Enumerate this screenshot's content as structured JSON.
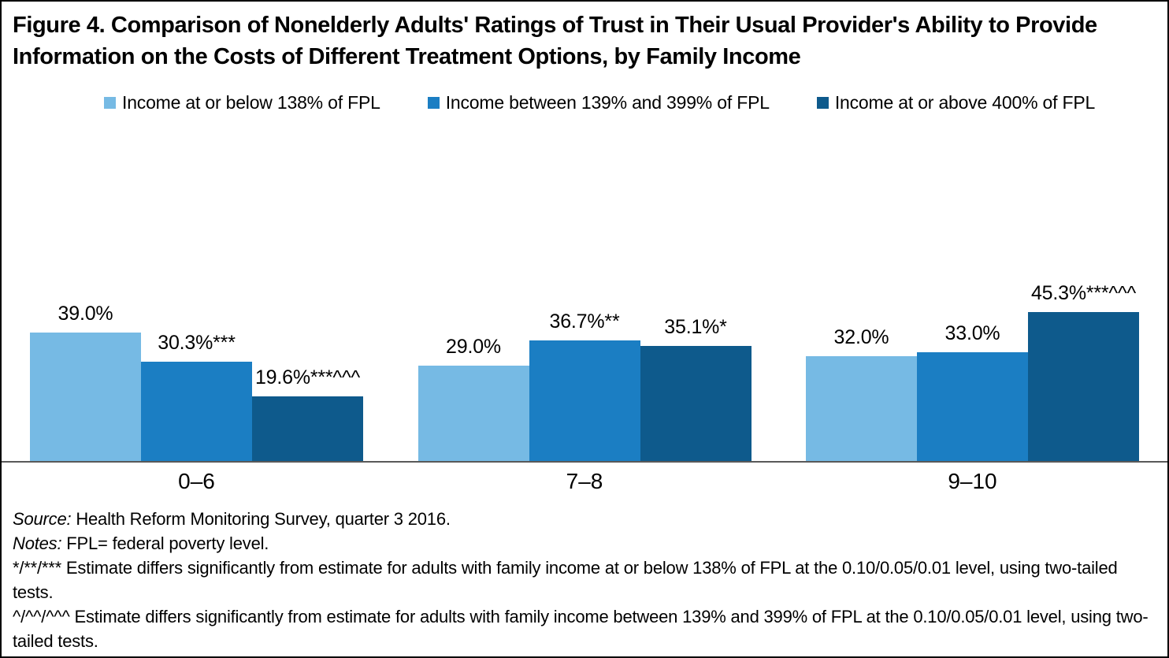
{
  "chart_data": {
    "type": "bar",
    "title": "Figure 4. Comparison of Nonelderly Adults' Ratings of Trust in Their Usual Provider's Ability to Provide Information on the Costs of Different Treatment Options, by Family Income",
    "categories": [
      "0–6",
      "7–8",
      "9–10"
    ],
    "series": [
      {
        "name": "Income at or below 138% of FPL",
        "color": "#76BAE4",
        "values": [
          39.0,
          29.0,
          32.0
        ],
        "labels": [
          "39.0%",
          "29.0%",
          "32.0%"
        ]
      },
      {
        "name": "Income between 139% and 399% of FPL",
        "color": "#1B7EC3",
        "values": [
          30.3,
          36.7,
          33.0
        ],
        "labels": [
          "30.3%***",
          "36.7%**",
          "33.0%"
        ]
      },
      {
        "name": "Income at or above 400% of FPL",
        "color": "#0E5A8C",
        "values": [
          19.6,
          35.1,
          45.3
        ],
        "labels": [
          "19.6%***^^^",
          "35.1%*",
          "45.3%***^^^"
        ]
      }
    ],
    "xlabel": "",
    "ylabel": "",
    "unit": "percent",
    "ylim": [
      0,
      50
    ],
    "grid": false,
    "legend_position": "top",
    "axis_line_color": "#595959"
  },
  "notes": {
    "source_label": "Source:",
    "source_text": " Health Reform Monitoring Survey, quarter 3 2016.",
    "notes_label": "Notes:",
    "notes_text": " FPL= federal poverty level.",
    "note1": "*/**/*** Estimate differs significantly from estimate for adults with family income at or below 138% of FPL at the 0.10/0.05/0.01 level, using two-tailed tests.",
    "note2": "^/^^/^^^ Estimate differs significantly from estimate for adults with family income between 139% and 399% of FPL at the 0.10/0.05/0.01 level, using two-tailed tests."
  }
}
